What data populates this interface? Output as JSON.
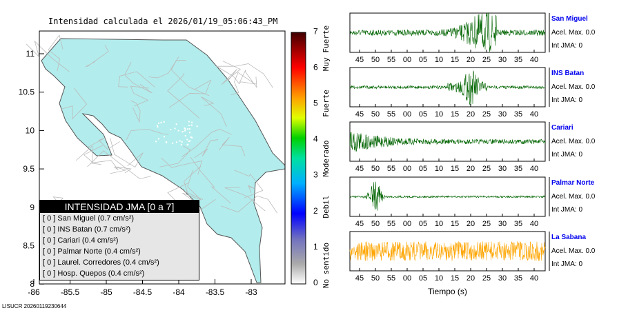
{
  "title": "Intensidad calculada el 2026/01/19_05:06:43_PM",
  "footer": "LISUCR 20260119230644",
  "map": {
    "lon_ticks": [
      "-86",
      "-85.5",
      "-85",
      "-84.5",
      "-84",
      "-83.5",
      "-83"
    ],
    "lat_ticks": [
      "11",
      "10.5",
      "10",
      "9.5",
      "9",
      "8.5",
      "8"
    ],
    "land_color": "#b3ecec"
  },
  "legend": {
    "header": "INTENSIDAD JMA [0 a 7]",
    "rows": [
      {
        "int": "[ 0 ]",
        "text": "San Miguel (0.7 cm/s²)"
      },
      {
        "int": "[ 0 ]",
        "text": "INS Batan (0.7 cm/s²)"
      },
      {
        "int": "[ 0 ]",
        "text": "Cariari (0.4 cm/s²)"
      },
      {
        "int": "[ 0 ]",
        "text": "Palmar Norte (0.4 cm/s²)"
      },
      {
        "int": "[ 0 ]",
        "text": "Laurel. Corredores (0.4 cm/s²)"
      },
      {
        "int": "[ 0 ]",
        "text": "Hosp. Quepos (0.4 cm/s²)"
      }
    ]
  },
  "colorbar": {
    "ticks": [
      "0",
      "1",
      "2",
      "3",
      "4",
      "5",
      "6",
      "7"
    ],
    "labels": [
      "No sentido",
      "Debil",
      "Moderado",
      "Fuerte",
      "Muy Fuerte"
    ]
  },
  "chart_data": {
    "type": "line",
    "xlabel": "Tiempo (s)",
    "x_ticks": [
      "45",
      "50",
      "55",
      "00",
      "05",
      "10",
      "15",
      "20",
      "25",
      "30",
      "35",
      "40"
    ],
    "stations": [
      {
        "name": "San Miguel",
        "acel": "Acel. Max. 0.0",
        "int": "Int JMA: 0",
        "color": "#006400"
      },
      {
        "name": "INS Batan",
        "acel": "Acel. Max. 0.0",
        "int": "Int JMA: 0",
        "color": "#006400"
      },
      {
        "name": "Cariari",
        "acel": "Acel. Max. 0.0",
        "int": "Int JMA: 0",
        "color": "#006400"
      },
      {
        "name": "Palmar Norte",
        "acel": "Acel. Max. 0.0",
        "int": "Int JMA: 0",
        "color": "#006400"
      },
      {
        "name": "La Sabana",
        "acel": "Acel. Max. 0.0",
        "int": "Int JMA: 0",
        "color": "#ffa500"
      }
    ]
  }
}
